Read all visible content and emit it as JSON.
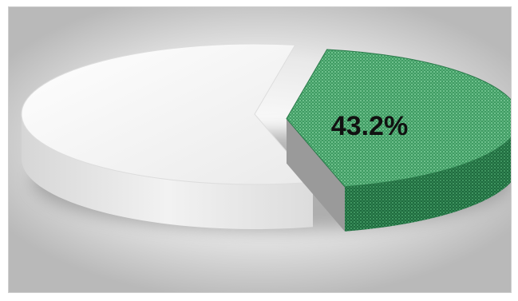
{
  "chart_data": {
    "type": "pie",
    "title": "",
    "slices": [
      {
        "value": 43.2,
        "label": "43.2%",
        "color": "#2e8b57"
      },
      {
        "value": 56.8,
        "label": "",
        "color": "#f4f4f4"
      }
    ],
    "style": "3d",
    "legend": "none"
  }
}
